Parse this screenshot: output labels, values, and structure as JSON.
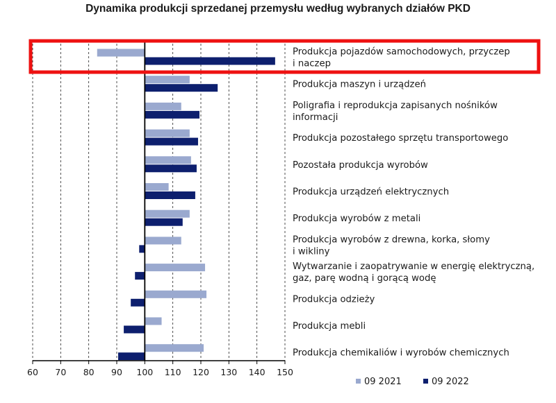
{
  "chart_data": {
    "type": "bar",
    "orientation": "horizontal",
    "title": "Dynamika produkcji sprzedanej przemysłu według wybranych działów PKD",
    "xlim": [
      60,
      150
    ],
    "xticks": [
      "60",
      "70",
      "80",
      "90",
      "100",
      "110",
      "120",
      "130",
      "140",
      "150"
    ],
    "baseline": 100,
    "grid": "vertical dashed",
    "legend_position": "bottom-right",
    "categories": [
      [
        "Produkcja pojazdów samochodowych, przyczep",
        "i naczep"
      ],
      [
        "Produkcja maszyn i urządzeń"
      ],
      [
        "Poligrafia i reprodukcja zapisanych nośników",
        "informacji"
      ],
      [
        "Produkcja pozostałego sprzętu transportowego"
      ],
      [
        "Pozostała produkcja wyrobów"
      ],
      [
        "Produkcja urządzeń elektrycznych"
      ],
      [
        "Produkcja wyrobów z metali"
      ],
      [
        "Produkcja wyrobów z drewna, korka, słomy",
        "i wikliny"
      ],
      [
        "Wytwarzanie i zaopatrywanie w energię elektryczną,",
        "gaz, parę wodną i gorącą wodę"
      ],
      [
        "Produkcja odzieży"
      ],
      [
        "Produkcja mebli"
      ],
      [
        "Produkcja chemikaliów i wyrobów chemicznych"
      ]
    ],
    "series": [
      {
        "name": "09 2021",
        "color": "#9aa9cf",
        "values": [
          83,
          116,
          113,
          116,
          116.5,
          108.5,
          116,
          113,
          121.5,
          122,
          106,
          121
        ]
      },
      {
        "name": "09 2022",
        "color": "#0d1f6e",
        "values": [
          146.5,
          126,
          119.5,
          119,
          118.5,
          118,
          113.5,
          98,
          96.5,
          95,
          92.5,
          90.5
        ]
      }
    ],
    "highlight": {
      "category_index": 0,
      "color": "#ee1111"
    }
  }
}
